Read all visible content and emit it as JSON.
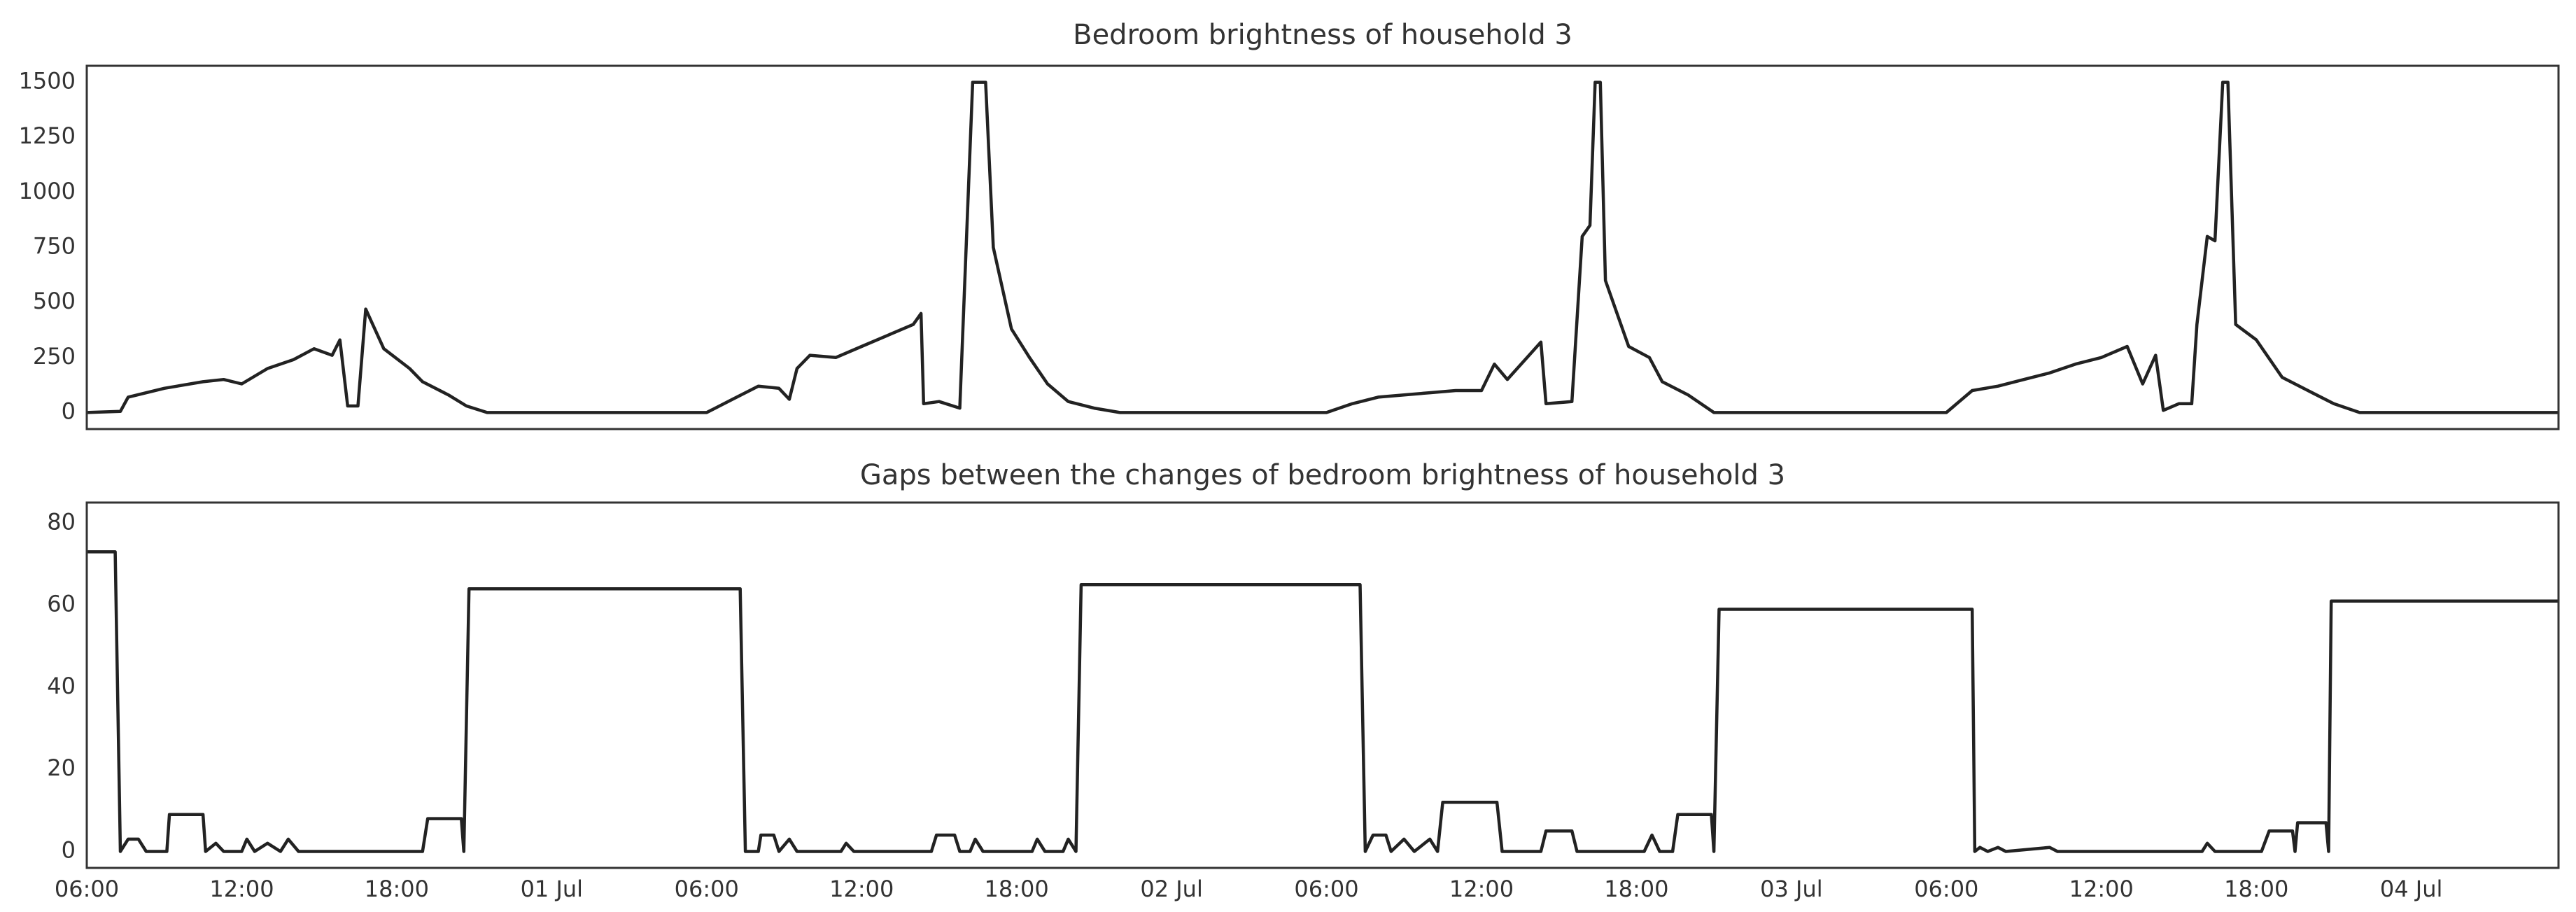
{
  "chart_data": [
    {
      "type": "line",
      "title": "Bedroom brightness of household 3",
      "color": "#222222",
      "x": [
        0,
        1.3,
        1.6,
        3,
        4.5,
        5.3,
        6,
        7,
        8,
        8.8,
        9.5,
        9.8,
        10.1,
        10.5,
        10.8,
        11.5,
        12.5,
        13,
        14,
        14.7,
        15.5,
        24,
        25,
        26,
        26.8,
        27.2,
        27.5,
        28,
        29,
        30,
        31,
        32,
        32.3,
        32.4,
        33,
        33.8,
        34.3,
        34.8,
        35.1,
        35.8,
        36.5,
        37.2,
        38,
        39,
        40,
        48,
        49,
        50,
        51,
        52,
        53,
        54,
        54.5,
        55,
        56.3,
        56.5,
        57.5,
        57.9,
        58.2,
        58.4,
        58.6,
        58.8,
        59.7,
        60.5,
        61,
        62,
        63,
        72,
        73,
        74,
        75,
        76,
        77,
        78,
        79,
        79.6,
        80.1,
        80.4,
        81,
        81.5,
        81.7,
        82.1,
        82.4,
        82.7,
        82.9,
        83.2,
        84,
        85,
        86,
        87,
        88,
        95.7
      ],
      "values": [
        0,
        5,
        70,
        110,
        140,
        150,
        130,
        200,
        240,
        290,
        260,
        330,
        30,
        30,
        470,
        290,
        200,
        140,
        80,
        30,
        0,
        0,
        60,
        120,
        110,
        60,
        200,
        260,
        250,
        300,
        350,
        400,
        450,
        40,
        50,
        20,
        1500,
        1500,
        750,
        380,
        250,
        130,
        50,
        20,
        0,
        0,
        40,
        70,
        80,
        90,
        100,
        100,
        220,
        150,
        320,
        40,
        50,
        800,
        850,
        1500,
        1500,
        600,
        300,
        250,
        140,
        80,
        0,
        0,
        100,
        120,
        150,
        180,
        220,
        250,
        300,
        130,
        260,
        10,
        40,
        40,
        400,
        800,
        780,
        1500,
        1500,
        400,
        330,
        160,
        100,
        40,
        0,
        0
      ],
      "xlim": [
        0,
        95.7
      ],
      "ylim": [
        -75,
        1575
      ],
      "yticks": [
        0,
        250,
        500,
        750,
        1000,
        1250,
        1500
      ]
    },
    {
      "type": "line",
      "title": "Gaps between the changes of bedroom brightness of household 3",
      "color": "#222222",
      "x": [
        0,
        1.1,
        1.3,
        1.6,
        2,
        2.3,
        3.1,
        3.2,
        4.5,
        4.6,
        5,
        5.3,
        6,
        6.2,
        6.5,
        7,
        7.5,
        7.8,
        8.2,
        13,
        13.2,
        14.5,
        14.6,
        14.8,
        25.3,
        25.5,
        26,
        26.1,
        26.6,
        26.8,
        27.2,
        27.5,
        29.2,
        29.4,
        29.7,
        32.7,
        32.9,
        33.6,
        33.8,
        34.2,
        34.4,
        34.7,
        36.6,
        36.8,
        37.1,
        37.8,
        38,
        38.3,
        38.5,
        49.3,
        49.5,
        49.8,
        50.3,
        50.5,
        51,
        51.4,
        52,
        52.3,
        52.5,
        54.6,
        54.8,
        56.3,
        56.5,
        57.5,
        57.7,
        60.3,
        60.6,
        60.9,
        61.4,
        61.6,
        62.9,
        63,
        63.2,
        73,
        73.1,
        73.3,
        73.6,
        74,
        74.3,
        76,
        76.3,
        81.9,
        82.1,
        82.4,
        84.2,
        84.5,
        85.4,
        85.5,
        85.6,
        86.7,
        86.8,
        86.9,
        95.7
      ],
      "values": [
        73,
        73,
        0,
        3,
        3,
        0,
        0,
        9,
        9,
        0,
        2,
        0,
        0,
        3,
        0,
        2,
        0,
        3,
        0,
        0,
        8,
        8,
        0,
        64,
        64,
        0,
        0,
        4,
        4,
        0,
        3,
        0,
        0,
        2,
        0,
        0,
        4,
        4,
        0,
        0,
        3,
        0,
        0,
        3,
        0,
        0,
        3,
        0,
        65,
        65,
        0,
        4,
        4,
        0,
        3,
        0,
        3,
        0,
        12,
        12,
        0,
        0,
        5,
        5,
        0,
        0,
        4,
        0,
        0,
        9,
        9,
        0,
        59,
        59,
        0,
        1,
        0,
        1,
        0,
        1,
        0,
        0,
        2,
        0,
        0,
        5,
        5,
        0,
        7,
        7,
        0,
        61,
        61
      ],
      "xlim": [
        0,
        95.7
      ],
      "ylim": [
        -4,
        85
      ],
      "yticks": [
        0,
        20,
        40,
        60,
        80
      ],
      "xticks": [
        {
          "value": 0,
          "label": "06:00"
        },
        {
          "value": 6,
          "label": "12:00"
        },
        {
          "value": 12,
          "label": "18:00"
        },
        {
          "value": 18,
          "label": "01 Jul"
        },
        {
          "value": 24,
          "label": "06:00"
        },
        {
          "value": 30,
          "label": "12:00"
        },
        {
          "value": 36,
          "label": "18:00"
        },
        {
          "value": 42,
          "label": "02 Jul"
        },
        {
          "value": 48,
          "label": "06:00"
        },
        {
          "value": 54,
          "label": "12:00"
        },
        {
          "value": 60,
          "label": "18:00"
        },
        {
          "value": 66,
          "label": "03 Jul"
        },
        {
          "value": 72,
          "label": "06:00"
        },
        {
          "value": 78,
          "label": "12:00"
        },
        {
          "value": 84,
          "label": "18:00"
        },
        {
          "value": 90,
          "label": "04 Jul"
        }
      ]
    }
  ]
}
